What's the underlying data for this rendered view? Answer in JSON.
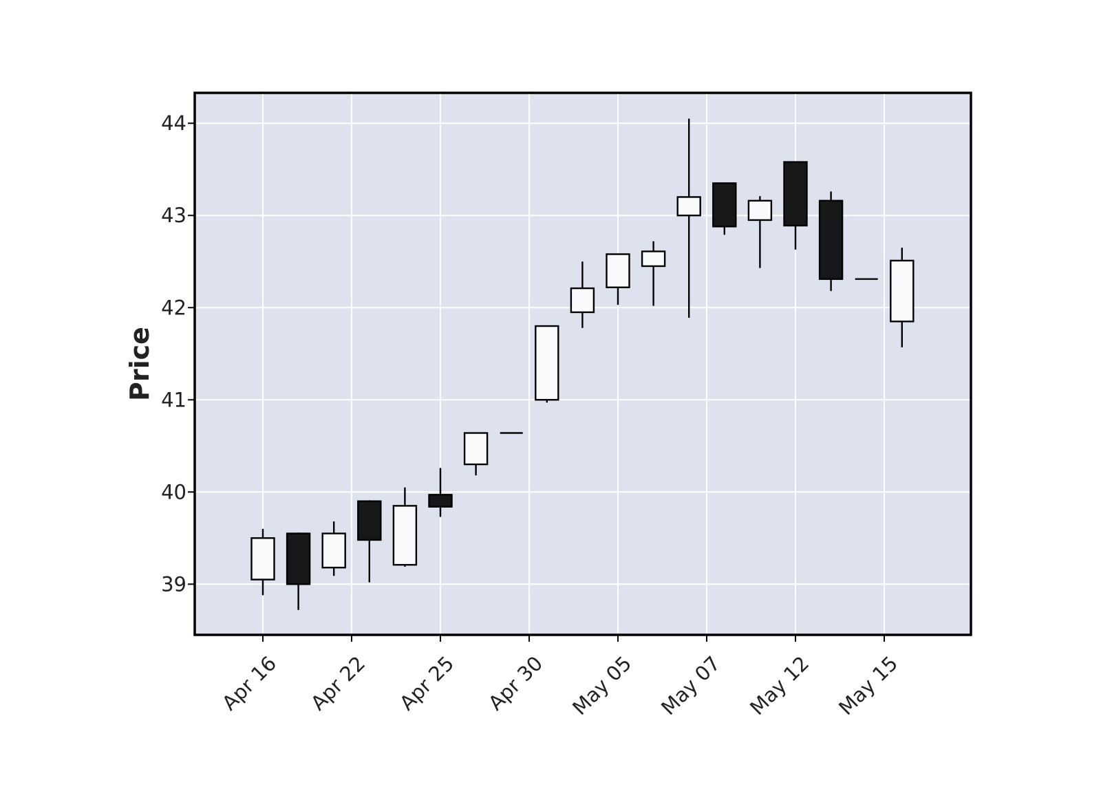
{
  "chart_data": {
    "type": "candlestick",
    "ylabel": "Price",
    "xlabel": "",
    "title": "",
    "ylim": [
      38.45,
      44.33
    ],
    "yticks": [
      39,
      40,
      41,
      42,
      43,
      44
    ],
    "grid": true,
    "colors": {
      "background": "#dde2ee",
      "grid": "#ffffff",
      "up_body": "#f8fafc",
      "down_body": "#17181a",
      "edge": "#000000"
    },
    "xtick_labels": [
      {
        "label": "Apr 16",
        "index": 0
      },
      {
        "label": "Apr 22",
        "index": 2.5
      },
      {
        "label": "Apr 25",
        "index": 5
      },
      {
        "label": "Apr 30",
        "index": 7.5
      },
      {
        "label": "May 05",
        "index": 10
      },
      {
        "label": "May 07",
        "index": 12.5
      },
      {
        "label": "May 12",
        "index": 15
      },
      {
        "label": "May 15",
        "index": 17.5
      }
    ],
    "candles": [
      {
        "open": 39.05,
        "high": 39.6,
        "low": 38.88,
        "close": 39.5
      },
      {
        "open": 39.55,
        "high": 39.56,
        "low": 38.72,
        "close": 39.0
      },
      {
        "open": 39.18,
        "high": 39.68,
        "low": 39.09,
        "close": 39.55
      },
      {
        "open": 39.9,
        "high": 39.91,
        "low": 39.02,
        "close": 39.48
      },
      {
        "open": 39.21,
        "high": 40.05,
        "low": 39.19,
        "close": 39.85
      },
      {
        "open": 39.97,
        "high": 40.26,
        "low": 39.73,
        "close": 39.84
      },
      {
        "open": 40.3,
        "high": 40.64,
        "low": 40.18,
        "close": 40.64
      },
      {
        "open": 40.64,
        "high": 40.64,
        "low": 40.64,
        "close": 40.64
      },
      {
        "open": 41.0,
        "high": 41.8,
        "low": 40.97,
        "close": 41.8
      },
      {
        "open": 41.95,
        "high": 42.5,
        "low": 41.78,
        "close": 42.21
      },
      {
        "open": 42.22,
        "high": 42.58,
        "low": 42.03,
        "close": 42.58
      },
      {
        "open": 42.45,
        "high": 42.72,
        "low": 42.02,
        "close": 42.61
      },
      {
        "open": 43.0,
        "high": 44.05,
        "low": 41.89,
        "close": 43.2
      },
      {
        "open": 43.35,
        "high": 43.35,
        "low": 42.79,
        "close": 42.88
      },
      {
        "open": 42.95,
        "high": 43.21,
        "low": 42.43,
        "close": 43.16
      },
      {
        "open": 43.58,
        "high": 43.58,
        "low": 42.63,
        "close": 42.89
      },
      {
        "open": 43.16,
        "high": 43.26,
        "low": 42.18,
        "close": 42.31
      },
      {
        "open": 42.31,
        "high": 42.31,
        "low": 42.31,
        "close": 42.31
      },
      {
        "open": 41.85,
        "high": 42.65,
        "low": 41.57,
        "close": 42.51
      }
    ]
  }
}
